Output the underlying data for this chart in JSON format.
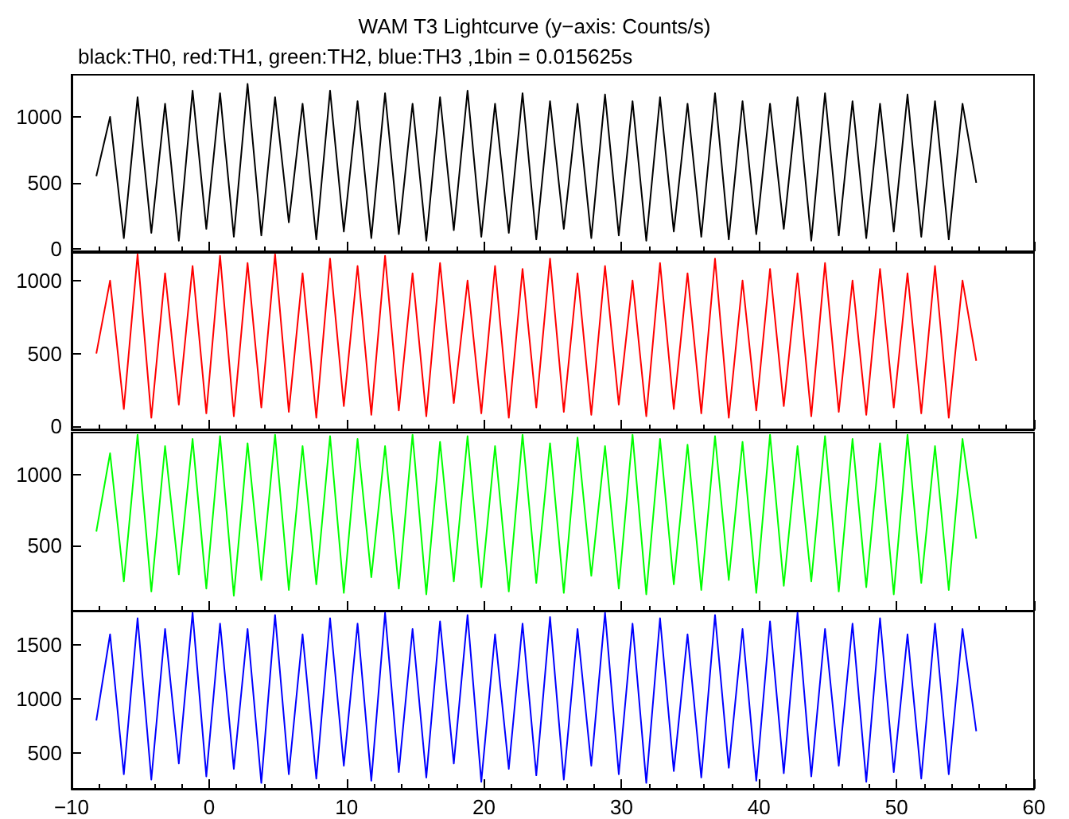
{
  "chart_data": [
    {
      "type": "line",
      "title": "WAM T3 Lightcurve (y−axis: Counts/s)",
      "subtitle": "black:TH0, red:TH1, green:TH2, blue:TH3 ,1bin = 0.015625s",
      "tick_labels": "y",
      "marker": "none",
      "x": [
        -8.2,
        -7.2,
        -6.2,
        -5.2,
        -4.2,
        -3.2,
        -2.2,
        -1.2,
        -0.2,
        0.8,
        1.8,
        2.8,
        3.8,
        4.8,
        5.8,
        6.8,
        7.8,
        8.8,
        9.8,
        10.8,
        11.8,
        12.8,
        13.8,
        14.8,
        15.8,
        16.8,
        17.8,
        18.8,
        19.8,
        20.8,
        21.8,
        22.8,
        23.8,
        24.8,
        25.8,
        26.8,
        27.8,
        28.8,
        29.8,
        30.8,
        31.8,
        32.8,
        33.8,
        34.8,
        35.8,
        36.8,
        37.8,
        38.8,
        39.8,
        40.8,
        41.8,
        42.8,
        43.8,
        44.8,
        45.8,
        46.8,
        47.8,
        48.8,
        49.8,
        50.8,
        51.8,
        52.8,
        53.8,
        54.8,
        55.8
      ],
      "series": [
        {
          "color": "#000000",
          "values": [
            550,
            1000,
            80,
            1150,
            120,
            1100,
            60,
            1200,
            150,
            1180,
            90,
            1250,
            100,
            1150,
            200,
            1100,
            70,
            1200,
            130,
            1120,
            80,
            1180,
            110,
            1100,
            60,
            1150,
            140,
            1200,
            90,
            1100,
            120,
            1180,
            70,
            1120,
            150,
            1100,
            80,
            1170,
            100,
            1120,
            60,
            1150,
            130,
            1100,
            90,
            1180,
            70,
            1120,
            110,
            1100,
            150,
            1150,
            60,
            1180,
            100,
            1120,
            80,
            1100,
            130,
            1170,
            90,
            1120,
            70,
            1100,
            500
          ]
        }
      ],
      "xlim": [
        -10,
        60
      ],
      "xticks": [
        -10,
        0,
        10,
        20,
        30,
        40,
        50,
        60
      ],
      "ylim": [
        -20,
        1320
      ],
      "yticks": [
        0,
        500,
        1000
      ]
    },
    {
      "type": "line",
      "tick_labels": "y",
      "marker": "none",
      "x": [
        -8.2,
        -7.2,
        -6.2,
        -5.2,
        -4.2,
        -3.2,
        -2.2,
        -1.2,
        -0.2,
        0.8,
        1.8,
        2.8,
        3.8,
        4.8,
        5.8,
        6.8,
        7.8,
        8.8,
        9.8,
        10.8,
        11.8,
        12.8,
        13.8,
        14.8,
        15.8,
        16.8,
        17.8,
        18.8,
        19.8,
        20.8,
        21.8,
        22.8,
        23.8,
        24.8,
        25.8,
        26.8,
        27.8,
        28.8,
        29.8,
        30.8,
        31.8,
        32.8,
        33.8,
        34.8,
        35.8,
        36.8,
        37.8,
        38.8,
        39.8,
        40.8,
        41.8,
        42.8,
        43.8,
        44.8,
        45.8,
        46.8,
        47.8,
        48.8,
        49.8,
        50.8,
        51.8,
        52.8,
        53.8,
        54.8,
        55.8
      ],
      "series": [
        {
          "color": "#ff0000",
          "values": [
            500,
            1000,
            120,
            1180,
            60,
            1050,
            150,
            1100,
            90,
            1170,
            70,
            1120,
            130,
            1180,
            100,
            1050,
            60,
            1150,
            140,
            1100,
            80,
            1170,
            110,
            1050,
            70,
            1120,
            160,
            1000,
            90,
            1100,
            60,
            1080,
            130,
            1150,
            100,
            1050,
            80,
            1100,
            150,
            1000,
            70,
            1120,
            120,
            1050,
            90,
            1150,
            60,
            1000,
            110,
            1080,
            140,
            1050,
            70,
            1120,
            100,
            1000,
            80,
            1080,
            130,
            1050,
            90,
            1100,
            60,
            1000,
            450
          ]
        }
      ],
      "xlim": [
        -10,
        60
      ],
      "xticks": [
        -10,
        0,
        10,
        20,
        30,
        40,
        50,
        60
      ],
      "ylim": [
        -20,
        1190
      ],
      "yticks": [
        0,
        500,
        1000
      ]
    },
    {
      "type": "line",
      "tick_labels": "y",
      "marker": "none",
      "x": [
        -8.2,
        -7.2,
        -6.2,
        -5.2,
        -4.2,
        -3.2,
        -2.2,
        -1.2,
        -0.2,
        0.8,
        1.8,
        2.8,
        3.8,
        4.8,
        5.8,
        6.8,
        7.8,
        8.8,
        9.8,
        10.8,
        11.8,
        12.8,
        13.8,
        14.8,
        15.8,
        16.8,
        17.8,
        18.8,
        19.8,
        20.8,
        21.8,
        22.8,
        23.8,
        24.8,
        25.8,
        26.8,
        27.8,
        28.8,
        29.8,
        30.8,
        31.8,
        32.8,
        33.8,
        34.8,
        35.8,
        36.8,
        37.8,
        38.8,
        39.8,
        40.8,
        41.8,
        42.8,
        43.8,
        44.8,
        45.8,
        46.8,
        47.8,
        48.8,
        49.8,
        50.8,
        51.8,
        52.8,
        53.8,
        54.8,
        55.8
      ],
      "series": [
        {
          "color": "#00ff00",
          "values": [
            600,
            1150,
            250,
            1280,
            180,
            1200,
            300,
            1250,
            200,
            1270,
            150,
            1220,
            260,
            1280,
            190,
            1200,
            230,
            1270,
            170,
            1250,
            280,
            1200,
            200,
            1280,
            160,
            1230,
            250,
            1270,
            210,
            1200,
            180,
            1280,
            240,
            1220,
            170,
            1260,
            290,
            1200,
            200,
            1280,
            160,
            1250,
            230,
            1210,
            190,
            1270,
            260,
            1230,
            170,
            1280,
            220,
            1200,
            250,
            1270,
            180,
            1250,
            210,
            1220,
            160,
            1280,
            240,
            1200,
            190,
            1250,
            550
          ]
        }
      ],
      "xlim": [
        -10,
        60
      ],
      "xticks": [
        -10,
        0,
        10,
        20,
        30,
        40,
        50,
        60
      ],
      "ylim": [
        45,
        1295
      ],
      "yticks": [
        500,
        1000
      ]
    },
    {
      "type": "line",
      "marker": "none",
      "x": [
        -8.2,
        -7.2,
        -6.2,
        -5.2,
        -4.2,
        -3.2,
        -2.2,
        -1.2,
        -0.2,
        0.8,
        1.8,
        2.8,
        3.8,
        4.8,
        5.8,
        6.8,
        7.8,
        8.8,
        9.8,
        10.8,
        11.8,
        12.8,
        13.8,
        14.8,
        15.8,
        16.8,
        17.8,
        18.8,
        19.8,
        20.8,
        21.8,
        22.8,
        23.8,
        24.8,
        25.8,
        26.8,
        27.8,
        28.8,
        29.8,
        30.8,
        31.8,
        32.8,
        33.8,
        34.8,
        35.8,
        36.8,
        37.8,
        38.8,
        39.8,
        40.8,
        41.8,
        42.8,
        43.8,
        44.8,
        45.8,
        46.8,
        47.8,
        48.8,
        49.8,
        50.8,
        51.8,
        52.8,
        53.8,
        54.8,
        55.8
      ],
      "series": [
        {
          "color": "#0000ff",
          "values": [
            800,
            1600,
            300,
            1750,
            250,
            1650,
            400,
            1800,
            280,
            1700,
            350,
            1650,
            220,
            1780,
            300,
            1600,
            260,
            1750,
            380,
            1700,
            240,
            1800,
            320,
            1650,
            270,
            1720,
            400,
            1780,
            230,
            1600,
            350,
            1700,
            290,
            1760,
            250,
            1650,
            380,
            1800,
            300,
            1700,
            220,
            1750,
            330,
            1600,
            270,
            1780,
            360,
            1650,
            240,
            1720,
            310,
            1800,
            280,
            1650,
            380,
            1700,
            230,
            1750,
            320,
            1600,
            260,
            1700,
            300,
            1650,
            700
          ]
        }
      ],
      "xlim": [
        -10,
        60
      ],
      "xticks": [
        -10,
        0,
        10,
        20,
        30,
        40,
        50,
        60
      ],
      "ylim": [
        165,
        1820
      ],
      "yticks": [
        500,
        1000,
        1500
      ]
    }
  ]
}
